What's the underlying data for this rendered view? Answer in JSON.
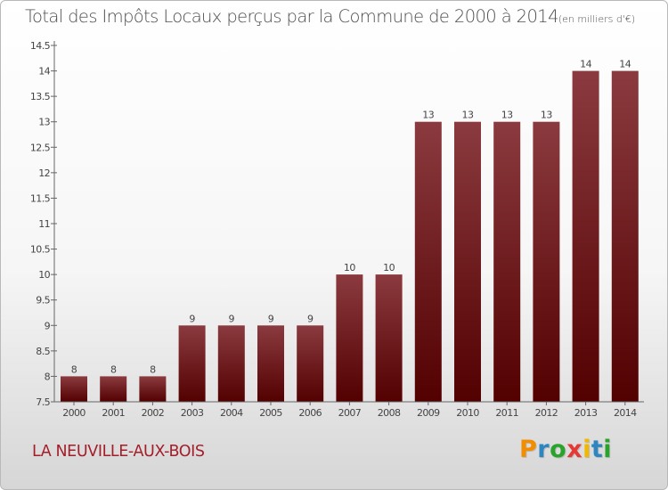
{
  "title": "Total des Impôts Locaux perçus par la Commune de 2000 à 2014",
  "title_unit": "(en milliers d'€)",
  "commune": "LA NEUVILLE-AUX-BOIS",
  "logo": {
    "text": "Proxiti",
    "letters": [
      "P",
      "r",
      "o",
      "x",
      "i",
      "t",
      "i"
    ],
    "colors": [
      "#f28c00",
      "#2e86c1",
      "#29a329",
      "#e53935",
      "#f2b700",
      "#2e86c1",
      "#29a329"
    ]
  },
  "colors": {
    "bar_top": "#8b3a3f",
    "bar_bottom": "#520000"
  },
  "chart_data": {
    "type": "bar",
    "title": "Total des Impôts Locaux perçus par la Commune de 2000 à 2014",
    "xlabel": "",
    "ylabel": "",
    "categories": [
      "2000",
      "2001",
      "2002",
      "2003",
      "2004",
      "2005",
      "2006",
      "2007",
      "2008",
      "2009",
      "2010",
      "2011",
      "2012",
      "2013",
      "2014"
    ],
    "values": [
      8,
      8,
      8,
      9,
      9,
      9,
      9,
      10,
      10,
      13,
      13,
      13,
      13,
      14,
      14
    ],
    "value_labels": [
      "8",
      "8",
      "8",
      "9",
      "9",
      "9",
      "9",
      "10",
      "10",
      "13",
      "13",
      "13",
      "13",
      "14",
      "14"
    ],
    "ylim": [
      7.5,
      14.5
    ],
    "yticks": [
      7.5,
      8,
      8.5,
      9,
      9.5,
      10,
      10.5,
      11,
      11.5,
      12,
      12.5,
      13,
      13.5,
      14,
      14.5
    ],
    "ytick_labels": [
      "7.5",
      "8",
      "8.5",
      "9",
      "9.5",
      "10",
      "10.5",
      "11",
      "11.5",
      "12",
      "12.5",
      "13",
      "13.5",
      "14",
      "14.5"
    ],
    "grid": false
  }
}
